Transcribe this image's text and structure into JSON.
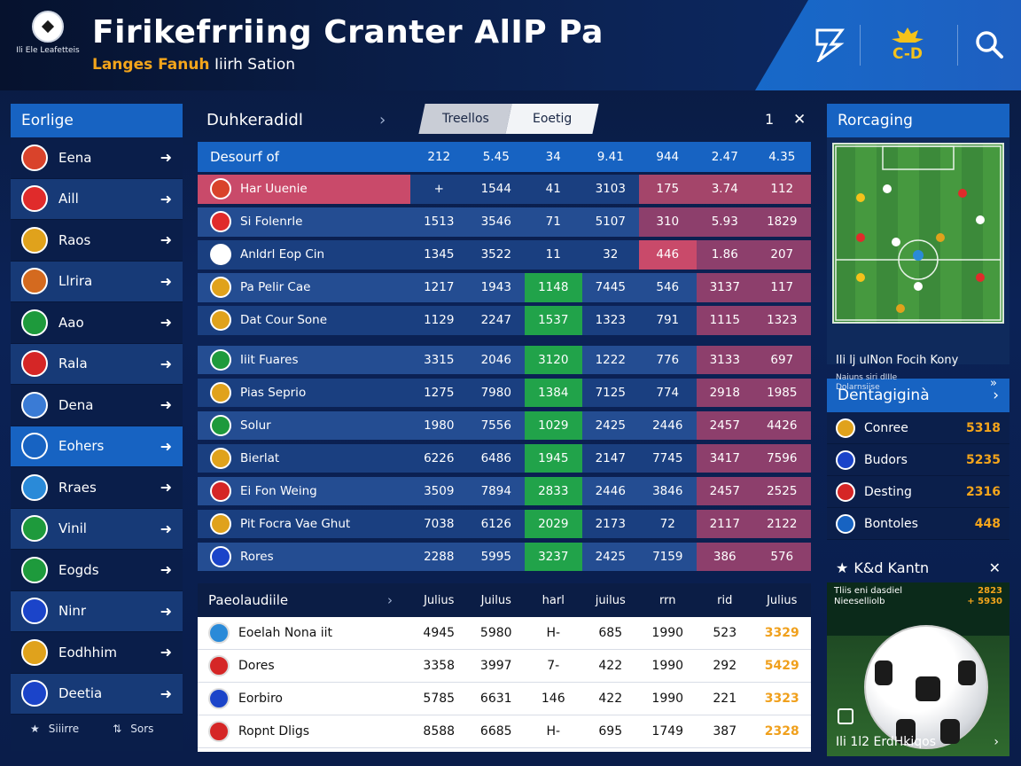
{
  "header": {
    "logo_text": "Ili Ele Leafetteis",
    "title": "Firikefrriing Cranter AlIP Pa",
    "subtitle_accent": "Langes Fanuh",
    "subtitle_rest": "Iiirh Sation",
    "icons": [
      "brand-icon",
      "trophy-icon",
      "search-icon"
    ],
    "trophy_text": "C-D"
  },
  "left_panel": {
    "title": "Eorlige",
    "items": [
      {
        "label": "Eena",
        "color": "#d9432b"
      },
      {
        "label": "Aill",
        "color": "#e02b2b"
      },
      {
        "label": "Raos",
        "color": "#e0a21c"
      },
      {
        "label": "Llrira",
        "color": "#d46a1f"
      },
      {
        "label": "Aao",
        "color": "#1e9a3c"
      },
      {
        "label": "Rala",
        "color": "#d52626"
      },
      {
        "label": "Dena",
        "color": "#3a7bd5"
      },
      {
        "label": "Eohers",
        "color": "#1763c2"
      },
      {
        "label": "Rraes",
        "color": "#2a8ad8"
      },
      {
        "label": "Vinil",
        "color": "#1e9a3c"
      },
      {
        "label": "Eogds",
        "color": "#1e9a3c"
      },
      {
        "label": "Ninr",
        "color": "#1b44c9"
      },
      {
        "label": "Eodhhim",
        "color": "#e0a21c"
      },
      {
        "label": "Deetia",
        "color": "#1b44c9"
      }
    ],
    "footer": [
      "Siiirre",
      "Sors"
    ]
  },
  "center": {
    "title": "Duhkeradidl",
    "tabs": [
      "Treellos",
      "Eoetig"
    ],
    "page": "1",
    "header_row": {
      "name": "Desourf of",
      "values": [
        "212",
        "5.45",
        "34",
        "9.41",
        "944",
        "2.47",
        "4.35"
      ]
    },
    "rows": [
      {
        "name": "Har Uuenie",
        "values": [
          "+",
          "1544",
          "41",
          "3103",
          "175",
          "3.74",
          "112"
        ],
        "name_bg": "#c94a6a",
        "fills": [
          "",
          "",
          "",
          "",
          "#a4456a",
          "#a4456a",
          "#a4456a"
        ],
        "badge": "#d9432b"
      },
      {
        "name": "Si Folenrle",
        "values": [
          "1513",
          "3546",
          "71",
          "5107",
          "310",
          "5.93",
          "1829"
        ],
        "name_bg": "",
        "fills": [
          "",
          "",
          "",
          "",
          "#8d3f6c",
          "#8d3f6c",
          "#8d3f6c"
        ],
        "badge": "#e02b2b"
      },
      {
        "name": "Anldrl Eop Cin",
        "values": [
          "1345",
          "3522",
          "11",
          "32",
          "446",
          "1.86",
          "207"
        ],
        "name_bg": "",
        "fills": [
          "",
          "",
          "",
          "",
          "#c94a6a",
          "#8d3f6c",
          "#8d3f6c"
        ],
        "badge": "#ffffff"
      },
      {
        "name": "Pa Pelir Cae",
        "values": [
          "1217",
          "1943",
          "1148",
          "7445",
          "546",
          "3137",
          "117"
        ],
        "name_bg": "",
        "fills": [
          "",
          "",
          "#21a34a",
          "",
          "",
          "#8d3f6c",
          "#8d3f6c"
        ],
        "badge": "#e0a21c"
      },
      {
        "name": "Dat Cour Sone",
        "values": [
          "1129",
          "2247",
          "1537",
          "1323",
          "791",
          "1115",
          "1323"
        ],
        "name_bg": "",
        "fills": [
          "",
          "",
          "#21a34a",
          "",
          "",
          "#8d3f6c",
          "#8d3f6c"
        ],
        "badge": "#e0a21c"
      },
      {
        "name": "Iiit Fuares",
        "values": [
          "3315",
          "2046",
          "3120",
          "1222",
          "776",
          "3133",
          "697"
        ],
        "name_bg": "",
        "fills": [
          "",
          "",
          "#21a34a",
          "",
          "",
          "#8d3f6c",
          "#8d3f6c"
        ],
        "badge": "#1e9a3c"
      },
      {
        "name": "Pias Seprio",
        "values": [
          "1275",
          "7980",
          "1384",
          "7125",
          "774",
          "2918",
          "1985"
        ],
        "name_bg": "",
        "fills": [
          "",
          "",
          "#21a34a",
          "",
          "",
          "#8d3f6c",
          "#8d3f6c"
        ],
        "badge": "#e0a21c"
      },
      {
        "name": "Solur",
        "values": [
          "1980",
          "7556",
          "1029",
          "2425",
          "2446",
          "2457",
          "4426"
        ],
        "name_bg": "",
        "fills": [
          "",
          "",
          "#21a34a",
          "",
          "",
          "#8d3f6c",
          "#8d3f6c"
        ],
        "badge": "#1e9a3c"
      },
      {
        "name": "Bierlat",
        "values": [
          "6226",
          "6486",
          "1945",
          "2147",
          "7745",
          "3417",
          "7596"
        ],
        "name_bg": "",
        "fills": [
          "",
          "",
          "#21a34a",
          "",
          "",
          "#8d3f6c",
          "#8d3f6c"
        ],
        "badge": "#e0a21c"
      },
      {
        "name": "Ei Fon Weing",
        "values": [
          "3509",
          "7894",
          "2833",
          "2446",
          "3846",
          "2457",
          "2525"
        ],
        "name_bg": "",
        "fills": [
          "",
          "",
          "#21a34a",
          "",
          "",
          "#8d3f6c",
          "#8d3f6c"
        ],
        "badge": "#d52626"
      },
      {
        "name": "Pit Focra Vae Ghut",
        "values": [
          "7038",
          "6126",
          "2029",
          "2173",
          "72",
          "2117",
          "2122"
        ],
        "name_bg": "",
        "fills": [
          "",
          "",
          "#21a34a",
          "",
          "",
          "#8d3f6c",
          "#8d3f6c"
        ],
        "badge": "#e0a21c"
      },
      {
        "name": "Rores",
        "values": [
          "2288",
          "5995",
          "3237",
          "2425",
          "7159",
          "386",
          "576"
        ],
        "name_bg": "",
        "fills": [
          "",
          "",
          "#21a34a",
          "",
          "",
          "#8d3f6c",
          "#8d3f6c"
        ],
        "badge": "#1b44c9"
      }
    ]
  },
  "bottom_table": {
    "title": "Paeolaudiile",
    "columns": [
      "Julius",
      "Juilus",
      "harl",
      "juilus",
      "rrn",
      "rid",
      "Julius"
    ],
    "rows": [
      {
        "name": "Eoelah Nona iit",
        "values": [
          "4945",
          "5980",
          "H-",
          "685",
          "1990",
          "523",
          "3329"
        ],
        "badge": "#2a8ad8"
      },
      {
        "name": "Dores",
        "values": [
          "3358",
          "3997",
          "7-",
          "422",
          "1990",
          "292",
          "5429"
        ],
        "badge": "#d52626"
      },
      {
        "name": "Eorbiro",
        "values": [
          "5785",
          "6631",
          "146",
          "422",
          "1990",
          "221",
          "3323"
        ],
        "badge": "#1b44c9"
      },
      {
        "name": "Ropnt Dligs",
        "values": [
          "8588",
          "6685",
          "H-",
          "695",
          "1749",
          "387",
          "2328"
        ],
        "badge": "#d52626"
      }
    ]
  },
  "right": {
    "pitch_title": "Rorcaging",
    "pitch_caption": "Ili lj ulNon Focih Kony",
    "pitch_sub": "Naiuns siri dIIIe\nDolarnsiise",
    "list_title": "Dentagiginà",
    "list": [
      {
        "name": "Conree",
        "value": "5318",
        "badge": "#e0a21c"
      },
      {
        "name": "Budors",
        "value": "5235",
        "badge": "#1b44c9"
      },
      {
        "name": "Desting",
        "value": "2316",
        "badge": "#d52626"
      },
      {
        "name": "Bontoles",
        "value": "448",
        "badge": "#1763c2"
      }
    ],
    "k_title": "K&d Kantn",
    "k_text": "Tliis eni dasdiel\nNieeselliolb",
    "k_value": "2823\n+ 5930",
    "k_caption": "Ili 1l2 ErdHkiqos"
  }
}
